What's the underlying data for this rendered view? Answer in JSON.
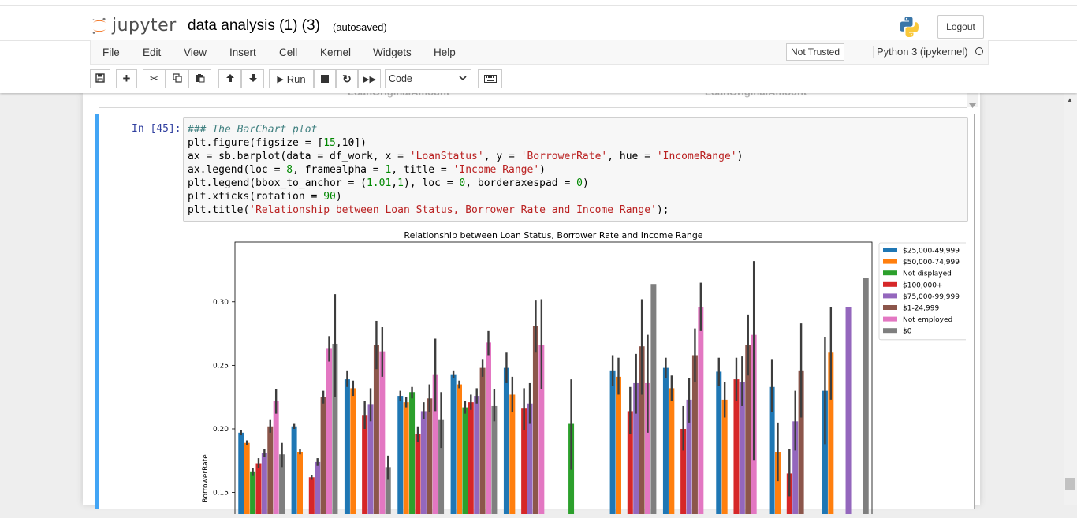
{
  "header": {
    "logo_text": "jupyter",
    "notebook_title": "data analysis (1) (3)",
    "autosave_status": "(autosaved)",
    "logout_label": "Logout"
  },
  "menu": {
    "items": [
      "File",
      "Edit",
      "View",
      "Insert",
      "Cell",
      "Kernel",
      "Widgets",
      "Help"
    ],
    "trust_status": "Not Trusted",
    "kernel_name": "Python 3 (ipykernel)"
  },
  "toolbar": {
    "run_label": "Run",
    "cell_type": "Code"
  },
  "prev_output": {
    "labels": [
      "LoanOriginalAmount",
      "LoanOriginalAmount"
    ]
  },
  "cell": {
    "prompt": "In [45]:",
    "code_lines": [
      "### The BarChart plot",
      "plt.figure(figsize = [15,10])",
      "ax = sb.barplot(data = df_work, x = 'LoanStatus', y = 'BorrowerRate', hue = 'IncomeRange')",
      "ax.legend(loc = 8, framealpha = 1, title = 'Income Range')",
      "plt.legend(bbox_to_anchor = (1.01,1), loc = 0, borderaxespad = 0)",
      "plt.xticks(rotation = 90)",
      "plt.title('Relationship between Loan Status, Borrower Rate and Income Range');"
    ]
  },
  "chart_data": {
    "type": "bar",
    "title": "Relationship between Loan Status, Borrower Rate and Income Range",
    "xlabel": "",
    "ylabel": "BorrowerRate",
    "ylim": [
      0.133,
      0.347
    ],
    "yticks": [
      0.15,
      0.2,
      0.25,
      0.3
    ],
    "ytick_labels": [
      "0.15",
      "0.20",
      "0.25",
      "0.30"
    ],
    "grid": false,
    "legend_position": "outside-top-right",
    "series": [
      {
        "name": "$25,000-49,999",
        "color": "#1f77b4"
      },
      {
        "name": "$50,000-74,999",
        "color": "#ff7f0e"
      },
      {
        "name": "Not displayed",
        "color": "#2ca02c"
      },
      {
        "name": "$100,000+",
        "color": "#d62728"
      },
      {
        "name": "$75,000-99,999",
        "color": "#9467bd"
      },
      {
        "name": "$1-24,999",
        "color": "#8c564b"
      },
      {
        "name": "Not employed",
        "color": "#e377c2"
      },
      {
        "name": "$0",
        "color": "#7f7f7f"
      }
    ],
    "groups": [
      {
        "values": [
          0.197,
          0.189,
          0.166,
          0.173,
          0.181,
          0.202,
          0.222,
          0.18
        ],
        "err_low": [
          0.195,
          0.187,
          0.163,
          0.169,
          0.178,
          0.197,
          0.212,
          0.17
        ],
        "err_high": [
          0.199,
          0.191,
          0.169,
          0.177,
          0.184,
          0.207,
          0.231,
          0.189
        ]
      },
      {
        "values": [
          0.202,
          0.182,
          null,
          0.162,
          0.174,
          0.225,
          0.263,
          0.267
        ],
        "err_low": [
          0.2,
          0.18,
          null,
          0.16,
          0.171,
          0.22,
          0.253,
          0.225
        ],
        "err_high": [
          0.204,
          0.184,
          null,
          0.164,
          0.177,
          0.23,
          0.273,
          0.306
        ]
      },
      {
        "values": [
          0.239,
          0.232,
          null,
          0.211,
          0.219,
          0.266,
          0.261,
          0.17
        ],
        "err_low": [
          0.233,
          0.226,
          null,
          0.2,
          0.206,
          0.247,
          0.241,
          0.16
        ],
        "err_high": [
          0.246,
          0.238,
          null,
          0.222,
          0.232,
          0.285,
          0.28,
          0.179
        ]
      },
      {
        "values": [
          0.226,
          0.221,
          0.229,
          0.196,
          0.214,
          0.224,
          0.243,
          0.207
        ],
        "err_low": [
          0.222,
          0.217,
          0.224,
          0.19,
          0.208,
          0.213,
          0.214,
          0.185
        ],
        "err_high": [
          0.23,
          0.225,
          0.233,
          0.202,
          0.221,
          0.235,
          0.271,
          0.229
        ]
      },
      {
        "values": [
          0.243,
          0.235,
          0.217,
          0.221,
          0.226,
          0.248,
          0.268,
          0.218
        ],
        "err_low": [
          0.24,
          0.232,
          0.212,
          0.215,
          0.22,
          0.241,
          0.258,
          0.206
        ],
        "err_high": [
          0.246,
          0.238,
          0.222,
          0.227,
          0.232,
          0.255,
          0.277,
          0.231
        ]
      },
      {
        "values": [
          0.248,
          0.227,
          null,
          0.216,
          0.22,
          0.281,
          0.266,
          null
        ],
        "err_low": [
          0.236,
          0.213,
          null,
          0.199,
          0.204,
          0.26,
          0.231,
          null
        ],
        "err_high": [
          0.26,
          0.241,
          null,
          0.232,
          0.236,
          0.301,
          0.302,
          null
        ]
      },
      {
        "values": [
          null,
          null,
          0.204,
          null,
          null,
          null,
          null,
          null
        ],
        "err_low": [
          null,
          null,
          0.168,
          null,
          null,
          null,
          null,
          null
        ],
        "err_high": [
          null,
          null,
          0.239,
          null,
          null,
          null,
          null,
          null
        ]
      },
      {
        "values": [
          0.246,
          0.241,
          null,
          0.214,
          0.236,
          0.265,
          0.236,
          0.314
        ],
        "err_low": [
          0.234,
          0.227,
          null,
          0.196,
          0.212,
          0.227,
          0.197,
          null
        ],
        "err_high": [
          0.258,
          0.256,
          null,
          0.233,
          0.259,
          0.302,
          0.274,
          null
        ]
      },
      {
        "values": [
          0.248,
          0.232,
          null,
          0.2,
          0.223,
          0.258,
          0.296,
          null
        ],
        "err_low": [
          0.24,
          0.222,
          null,
          0.183,
          0.205,
          0.237,
          0.277,
          null
        ],
        "err_high": [
          0.256,
          0.242,
          null,
          0.218,
          0.24,
          0.279,
          0.315,
          null
        ]
      },
      {
        "values": [
          0.245,
          0.223,
          null,
          0.239,
          0.237,
          0.266,
          0.274,
          null
        ],
        "err_low": [
          0.234,
          0.209,
          null,
          0.222,
          0.218,
          0.242,
          0.175,
          null
        ],
        "err_high": [
          0.256,
          0.237,
          null,
          0.256,
          0.257,
          0.29,
          0.332,
          null
        ]
      },
      {
        "values": [
          0.233,
          0.182,
          null,
          0.165,
          0.206,
          0.246,
          null,
          null
        ],
        "err_low": [
          0.213,
          0.159,
          null,
          0.147,
          0.183,
          0.209,
          null,
          null
        ],
        "err_high": [
          0.255,
          0.205,
          null,
          0.184,
          0.23,
          0.283,
          null,
          null
        ]
      },
      {
        "values": [
          0.23,
          0.26,
          null,
          null,
          0.296,
          null,
          null,
          0.319
        ],
        "err_low": [
          0.188,
          0.223,
          null,
          null,
          null,
          null,
          null,
          null
        ],
        "err_high": [
          0.272,
          0.296,
          null,
          null,
          null,
          null,
          null,
          null
        ]
      }
    ]
  }
}
